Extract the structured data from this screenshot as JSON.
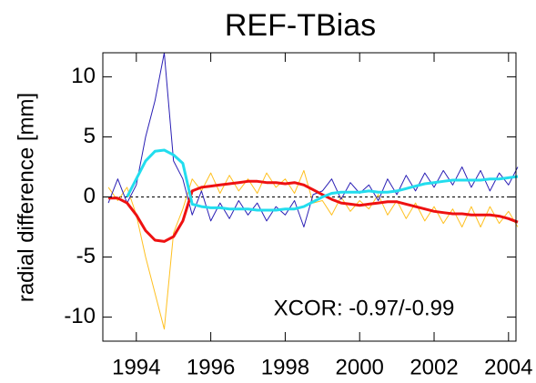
{
  "chart_data": {
    "type": "line",
    "title": "REF-TBias",
    "y_label": "radial difference [mm]",
    "annotation": "XCOR: -0.97/-0.99",
    "xlim": [
      1993.1,
      2004.2
    ],
    "xticks": [
      1994,
      1996,
      1998,
      2000,
      2002,
      2004
    ],
    "ylim": [
      -12,
      12
    ],
    "yticks": [
      -10,
      -5,
      0,
      5,
      10
    ],
    "x": [
      1993.25,
      1993.5,
      1993.75,
      1994,
      1994.25,
      1994.5,
      1994.75,
      1995,
      1995.25,
      1995.5,
      1995.75,
      1996,
      1996.25,
      1996.5,
      1996.75,
      1997,
      1997.25,
      1997.5,
      1997.75,
      1998,
      1998.25,
      1998.5,
      1998.75,
      1999,
      1999.25,
      1999.5,
      1999.75,
      2000,
      2000.25,
      2000.5,
      2000.75,
      2001,
      2001.25,
      2001.5,
      2001.75,
      2002,
      2002.25,
      2002.5,
      2002.75,
      2003,
      2003.25,
      2003.5,
      2003.75,
      2004,
      2004.25
    ],
    "series": [
      {
        "color": "#ffc020",
        "width": 1,
        "values": [
          0.8,
          -0.3,
          0.8,
          -1.5,
          -5,
          -8,
          -11,
          -3,
          -1,
          1.5,
          0.5,
          2,
          0.3,
          1.8,
          0.5,
          1.5,
          0.3,
          2,
          0.8,
          1.5,
          0.3,
          2.2,
          -0.5,
          -0.3,
          -1.5,
          0,
          -1.2,
          -0.3,
          -1.0,
          0.2,
          -1.5,
          -0.3,
          -1.8,
          -0.5,
          -2.0,
          -0.8,
          -2.2,
          -1.0,
          -2.5,
          -0.8,
          -2.5,
          -0.8,
          -2.2,
          -1.2,
          -2.5
        ]
      },
      {
        "color": "#2a1fb5",
        "width": 1,
        "values": [
          -0.5,
          1.5,
          -0.5,
          1.0,
          5,
          8,
          12,
          3,
          1.5,
          -1.5,
          0.5,
          -2,
          -0.5,
          -1.8,
          -0.3,
          -1.5,
          -0.5,
          -2.0,
          -0.8,
          -1.5,
          -0.3,
          -2.5,
          0.2,
          0.5,
          1.5,
          -0.2,
          1.2,
          0.3,
          1.0,
          -0.3,
          1.5,
          0.2,
          1.8,
          0.5,
          2.0,
          0.8,
          2.2,
          1.0,
          2.5,
          0.8,
          2.2,
          0.5,
          2.0,
          1.0,
          2.5
        ]
      },
      {
        "color": "#ee1111",
        "width": 3,
        "values": [
          -0.1,
          -0.1,
          -0.5,
          -1.5,
          -2.8,
          -3.6,
          -3.7,
          -3.3,
          -2.0,
          0.5,
          0.8,
          0.9,
          1.0,
          1.1,
          1.2,
          1.3,
          1.3,
          1.2,
          1.2,
          1.1,
          1.2,
          1.0,
          0.6,
          0.2,
          -0.2,
          -0.5,
          -0.6,
          -0.7,
          -0.6,
          -0.5,
          -0.4,
          -0.4,
          -0.6,
          -0.8,
          -1.0,
          -1.2,
          -1.3,
          -1.4,
          -1.4,
          -1.5,
          -1.5,
          -1.5,
          -1.6,
          -1.8,
          -2.1
        ]
      },
      {
        "color": "#22ddee",
        "width": 3,
        "values": [
          null,
          null,
          0.0,
          1.5,
          3.0,
          3.8,
          3.9,
          3.5,
          2.8,
          -0.6,
          -0.8,
          -0.9,
          -0.9,
          -1.0,
          -1.0,
          -1.0,
          -1.1,
          -1.1,
          -1.1,
          -1.0,
          -1.0,
          -0.8,
          -0.4,
          0.0,
          0.3,
          0.4,
          0.4,
          0.4,
          0.5,
          0.4,
          0.4,
          0.5,
          0.7,
          0.9,
          1.1,
          1.2,
          1.3,
          1.4,
          1.4,
          1.4,
          1.4,
          1.5,
          1.5,
          1.6,
          1.7
        ]
      }
    ]
  }
}
